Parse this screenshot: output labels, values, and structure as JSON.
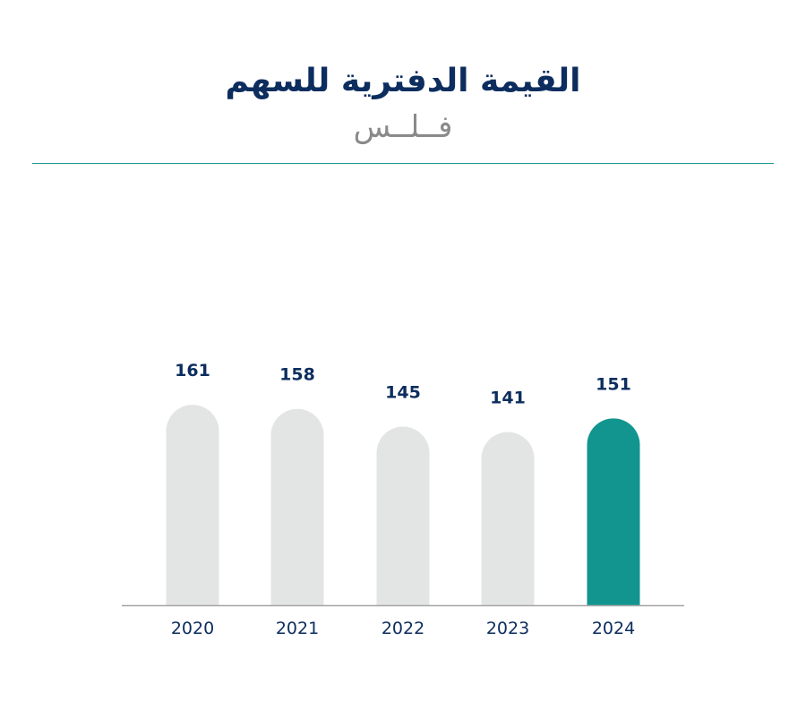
{
  "chart_data": {
    "type": "bar",
    "title": "القيمة الدفترية للسهم",
    "subtitle": "فــلــس",
    "categories": [
      "2020",
      "2021",
      "2022",
      "2023",
      "2024"
    ],
    "values": [
      161,
      158,
      145,
      141,
      151
    ],
    "bar_color": "#e3e4e4",
    "highlight_color": "#12958f",
    "highlight_index": 4,
    "label_color": "#0c2d5e",
    "axis_color": "#a6a6a6",
    "grid": false,
    "legend": "none"
  }
}
